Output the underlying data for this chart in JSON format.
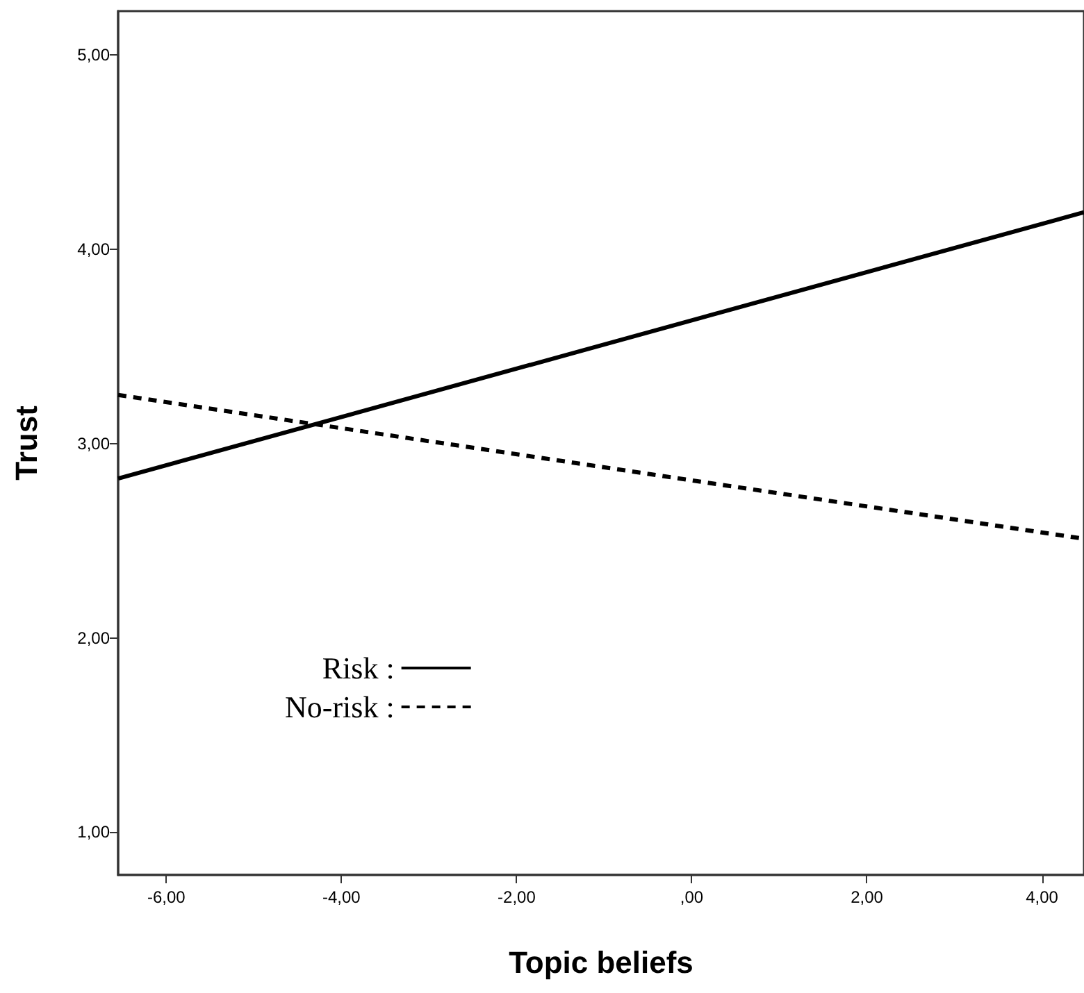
{
  "chart_data": {
    "type": "line",
    "xlabel": "Topic beliefs",
    "ylabel": "Trust",
    "x": [
      -6.55,
      4.48
    ],
    "series": [
      {
        "name": "Risk :",
        "color": "#000000",
        "line_style": "solid",
        "values": [
          2.82,
          4.19
        ]
      },
      {
        "name": "No-risk :",
        "color": "#000000",
        "line_style": "dashed",
        "values": [
          3.25,
          2.51
        ]
      }
    ],
    "xlim": [
      -6.55,
      4.48
    ],
    "xticks": [
      {
        "value": -6,
        "label": "-6,00"
      },
      {
        "value": -4,
        "label": "-4,00"
      },
      {
        "value": -2,
        "label": "-2,00"
      },
      {
        "value": 0,
        "label": ",00"
      },
      {
        "value": 2,
        "label": "2,00"
      },
      {
        "value": 4,
        "label": "4,00"
      }
    ],
    "ylim": [
      0.78,
      5.225
    ],
    "yticks": [
      {
        "value": 1,
        "label": "1,00"
      },
      {
        "value": 2,
        "label": "2,00"
      },
      {
        "value": 3,
        "label": "3,00"
      },
      {
        "value": 4,
        "label": "4,00"
      },
      {
        "value": 5,
        "label": "5,00"
      }
    ],
    "grid": false,
    "marker": "none",
    "legend": "bottom left"
  }
}
